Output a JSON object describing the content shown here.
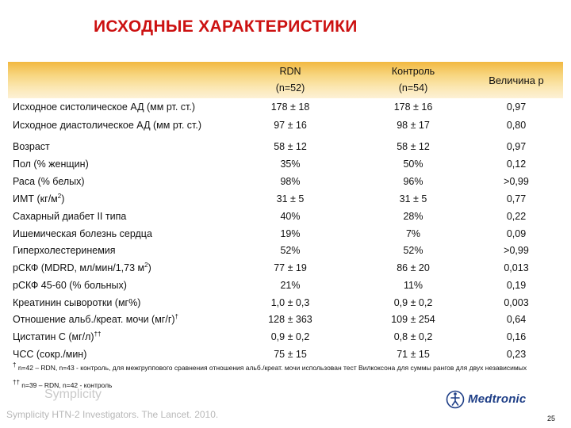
{
  "title": "ИСХОДНЫЕ ХАРАКТЕРИСТИКИ",
  "table": {
    "headers": [
      {
        "line1": "RDN",
        "line2": "(n=52)"
      },
      {
        "line1": "Контроль",
        "line2": "(n=54)"
      },
      {
        "line1": "Величина p",
        "line2": ""
      }
    ],
    "rows": [
      {
        "label": "Исходное систолическое АД (мм рт. ст.)",
        "sup": "",
        "rdn": "178 ± 18",
        "control": "178 ± 16",
        "p": "0,97"
      },
      {
        "label": "Исходное  диастолическое АД (мм рт. ст.)",
        "sup": "",
        "rdn": "97 ± 16",
        "control": "98 ± 17",
        "p": "0,80"
      },
      {
        "label": "Возраст",
        "sup": "",
        "rdn": "58 ± 12",
        "control": "58 ± 12",
        "p": "0,97"
      },
      {
        "label": "Пол (% женщин)",
        "sup": "",
        "rdn": "35%",
        "control": "50%",
        "p": "0,12"
      },
      {
        "label": "Раса (% белых)",
        "sup": "",
        "rdn": "98%",
        "control": "96%",
        "p": ">0,99"
      },
      {
        "label": "ИМТ (кг/м",
        "sup": "2",
        "suffix": ")",
        "rdn": "31 ± 5",
        "control": "31 ± 5",
        "p": "0,77"
      },
      {
        "label": "Сахарный диабет II типа",
        "sup": "",
        "rdn": "40%",
        "control": "28%",
        "p": "0,22"
      },
      {
        "label": "Ишемическая болезнь сердца",
        "sup": "",
        "rdn": "19%",
        "control": "7%",
        "p": "0,09"
      },
      {
        "label": "Гиперхолестеринемия",
        "sup": "",
        "rdn": "52%",
        "control": "52%",
        "p": ">0,99"
      },
      {
        "label": "рСКФ (MDRD, мл/мин/1,73 м",
        "sup": "2",
        "suffix": ")",
        "rdn": "77 ± 19",
        "control": "86 ± 20",
        "p": "0,013"
      },
      {
        "label": "рСКФ 45-60 (% больных)",
        "sup": "",
        "rdn": "21%",
        "control": "11%",
        "p": "0,19"
      },
      {
        "label": "Креатинин сыворотки (мг%)",
        "sup": "",
        "rdn": "1,0 ± 0,3",
        "control": "0,9 ± 0,2",
        "p": "0,003"
      },
      {
        "label": "Отношение альб./креат. мочи (мг/г)",
        "sup": "†",
        "rdn": "128 ± 363",
        "control": "109 ± 254",
        "p": "0,64"
      },
      {
        "label": "Цистатин С (мг/л)",
        "sup": "††",
        "rdn": "0,9 ± 0,2",
        "control": "0,8 ± 0,2",
        "p": "0,16"
      },
      {
        "label": "ЧСС (сокр./мин)",
        "sup": "",
        "rdn": "75 ± 15",
        "control": "71 ± 15",
        "p": "0,23"
      }
    ]
  },
  "footnotes": {
    "note1_mark": "†",
    "note1": " n=42 – RDN, n=43 - контроль, для межгруппового сравнения отношения альб./креат. мочи использован тест Вилкоксона для суммы рангов для двух независимых",
    "note2_mark": "††",
    "note2": " n=39 – RDN, n=42 - контроль"
  },
  "brand": "Symplicity",
  "citation": "Symplicity HTN-2 Investigators.  The Lancet. 2010.",
  "logo_text": "Medtronic",
  "page_number": "25",
  "colors": {
    "title": "#cc1111",
    "header_band_top": "#f2b840",
    "header_band_bottom": "#fdf1d6",
    "logo": "#1f3f87"
  }
}
